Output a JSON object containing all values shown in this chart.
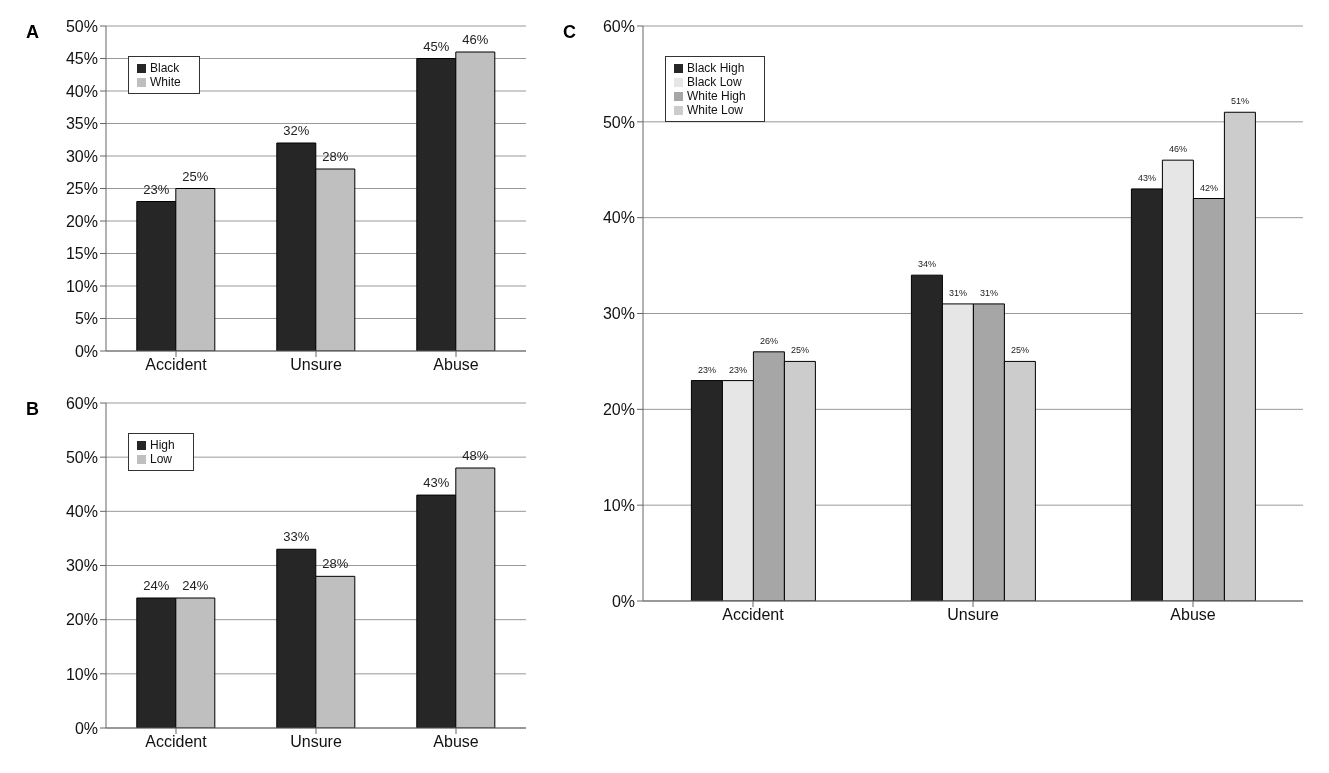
{
  "chart_data": [
    {
      "type": "bar",
      "title": "A",
      "categories": [
        "Accident",
        "Unsure",
        "Abuse"
      ],
      "ylim": [
        0,
        50
      ],
      "yticks": [
        {
          "value": 0,
          "label": "0%"
        },
        {
          "value": 5,
          "label": "5%"
        },
        {
          "value": 10,
          "label": "10%"
        },
        {
          "value": 15,
          "label": "15%"
        },
        {
          "value": 20,
          "label": "20%"
        },
        {
          "value": 25,
          "label": "25%"
        },
        {
          "value": 30,
          "label": "30%"
        },
        {
          "value": 35,
          "label": "35%"
        },
        {
          "value": 40,
          "label": "40%"
        },
        {
          "value": 45,
          "label": "45%"
        },
        {
          "value": 50,
          "label": "50%"
        }
      ],
      "grid": "y",
      "legend": "top left",
      "series": [
        {
          "name": "Black",
          "color": "#262626",
          "values": [
            23,
            32,
            45
          ],
          "value_labels": [
            "23%",
            "32%",
            "45%"
          ]
        },
        {
          "name": "White",
          "color": "#bfbfbf",
          "values": [
            25,
            28,
            46
          ],
          "value_labels": [
            "25%",
            "28%",
            "46%"
          ]
        }
      ]
    },
    {
      "type": "bar",
      "title": "B",
      "categories": [
        "Accident",
        "Unsure",
        "Abuse"
      ],
      "ylim": [
        0,
        60
      ],
      "yticks": [
        {
          "value": 0,
          "label": "0%"
        },
        {
          "value": 10,
          "label": "10%"
        },
        {
          "value": 20,
          "label": "20%"
        },
        {
          "value": 30,
          "label": "30%"
        },
        {
          "value": 40,
          "label": "40%"
        },
        {
          "value": 50,
          "label": "50%"
        },
        {
          "value": 60,
          "label": "60%"
        }
      ],
      "grid": "y",
      "legend": "top left",
      "series": [
        {
          "name": "High",
          "color": "#262626",
          "values": [
            24,
            33,
            43
          ],
          "value_labels": [
            "24%",
            "33%",
            "43%"
          ]
        },
        {
          "name": "Low",
          "color": "#bfbfbf",
          "values": [
            24,
            28,
            48
          ],
          "value_labels": [
            "24%",
            "28%",
            "48%"
          ]
        }
      ]
    },
    {
      "type": "bar",
      "title": "C",
      "categories": [
        "Accident",
        "Unsure",
        "Abuse"
      ],
      "ylim": [
        0,
        60
      ],
      "yticks": [
        {
          "value": 0,
          "label": "0%"
        },
        {
          "value": 10,
          "label": "10%"
        },
        {
          "value": 20,
          "label": "20%"
        },
        {
          "value": 30,
          "label": "30%"
        },
        {
          "value": 40,
          "label": "40%"
        },
        {
          "value": 50,
          "label": "50%"
        },
        {
          "value": 60,
          "label": "60%"
        }
      ],
      "grid": "y",
      "legend": "top left",
      "series": [
        {
          "name": "Black High",
          "color": "#262626",
          "values": [
            23,
            34,
            43
          ],
          "value_labels": [
            "23%",
            "34%",
            "43%"
          ]
        },
        {
          "name": "Black Low",
          "color": "#e6e6e6",
          "values": [
            23,
            31,
            46
          ],
          "value_labels": [
            "23%",
            "31%",
            "46%"
          ]
        },
        {
          "name": "White High",
          "color": "#a6a6a6",
          "values": [
            26,
            31,
            42
          ],
          "value_labels": [
            "26%",
            "31%",
            "42%"
          ]
        },
        {
          "name": "White Low",
          "color": "#cccccc",
          "values": [
            25,
            25,
            51
          ],
          "value_labels": [
            "25%",
            "25%",
            "51%"
          ]
        }
      ]
    }
  ]
}
